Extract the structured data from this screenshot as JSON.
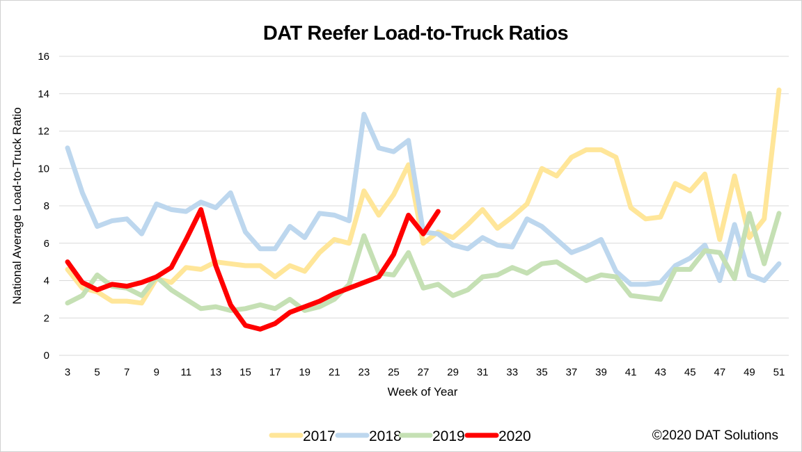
{
  "chart_data": {
    "type": "line",
    "title": "DAT Reefer Load-to-Truck Ratios",
    "xlabel": "Week of Year",
    "ylabel": "National Average Load-to-Truck Ratio",
    "xlim": [
      3,
      51
    ],
    "ylim": [
      0,
      16
    ],
    "yticks": [
      0,
      2,
      4,
      6,
      8,
      10,
      12,
      14,
      16
    ],
    "xticks": [
      3,
      5,
      7,
      9,
      11,
      13,
      15,
      17,
      19,
      21,
      23,
      25,
      27,
      29,
      31,
      33,
      35,
      37,
      39,
      41,
      43,
      45,
      47,
      49,
      51
    ],
    "grid": "horizontal",
    "legend_position": "bottom",
    "credit": "©2020 DAT Solutions",
    "weeks": [
      3,
      4,
      5,
      6,
      7,
      8,
      9,
      10,
      11,
      12,
      13,
      14,
      15,
      16,
      17,
      18,
      19,
      20,
      21,
      22,
      23,
      24,
      25,
      26,
      27,
      28,
      29,
      30,
      31,
      32,
      33,
      34,
      35,
      36,
      37,
      38,
      39,
      40,
      41,
      42,
      43,
      44,
      45,
      46,
      47,
      48,
      49,
      50,
      51
    ],
    "series": [
      {
        "name": "2017",
        "color": "#FFE699",
        "width": 7,
        "values": [
          4.6,
          3.6,
          3.4,
          2.9,
          2.9,
          2.8,
          4.1,
          3.9,
          4.7,
          4.6,
          5.0,
          4.9,
          4.8,
          4.8,
          4.2,
          4.8,
          4.5,
          5.5,
          6.2,
          6.0,
          8.8,
          7.5,
          8.6,
          10.2,
          6.0,
          6.6,
          6.3,
          7.0,
          7.8,
          6.8,
          7.4,
          8.1,
          10.0,
          9.6,
          10.6,
          11.0,
          11.0,
          10.6,
          7.9,
          7.3,
          7.4,
          9.2,
          8.8,
          9.7,
          6.2,
          9.6,
          6.3,
          7.3,
          14.2
        ]
      },
      {
        "name": "2018",
        "color": "#BDD7EE",
        "width": 7,
        "values": [
          11.1,
          8.7,
          6.9,
          7.2,
          7.3,
          6.5,
          8.1,
          7.8,
          7.7,
          8.2,
          7.9,
          8.7,
          6.6,
          5.7,
          5.7,
          6.9,
          6.3,
          7.6,
          7.5,
          7.2,
          12.9,
          11.1,
          10.9,
          11.5,
          6.6,
          6.5,
          5.9,
          5.7,
          6.3,
          5.9,
          5.8,
          7.3,
          6.9,
          6.2,
          5.5,
          5.8,
          6.2,
          4.5,
          3.8,
          3.8,
          3.9,
          4.8,
          5.2,
          5.9,
          4.0,
          7.0,
          4.3,
          4.0,
          4.9
        ]
      },
      {
        "name": "2019",
        "color": "#C5E0B4",
        "width": 7,
        "values": [
          2.8,
          3.2,
          4.3,
          3.7,
          3.6,
          3.2,
          4.2,
          3.5,
          3.0,
          2.5,
          2.6,
          2.4,
          2.5,
          2.7,
          2.5,
          3.0,
          2.4,
          2.6,
          3.0,
          3.8,
          6.4,
          4.4,
          4.3,
          5.5,
          3.6,
          3.8,
          3.2,
          3.5,
          4.2,
          4.3,
          4.7,
          4.4,
          4.9,
          5.0,
          4.5,
          4.0,
          4.3,
          4.2,
          3.2,
          3.1,
          3.0,
          4.6,
          4.6,
          5.6,
          5.5,
          4.1,
          7.6,
          4.9,
          7.6
        ]
      },
      {
        "name": "2020",
        "color": "#FF0000",
        "width": 7,
        "values": [
          5.0,
          3.9,
          3.5,
          3.8,
          3.7,
          3.9,
          4.2,
          4.7,
          6.2,
          7.8,
          4.8,
          2.7,
          1.6,
          1.4,
          1.7,
          2.3,
          2.6,
          2.9,
          3.3,
          3.6,
          3.9,
          4.2,
          5.4,
          7.5,
          6.5,
          7.7
        ]
      }
    ]
  }
}
